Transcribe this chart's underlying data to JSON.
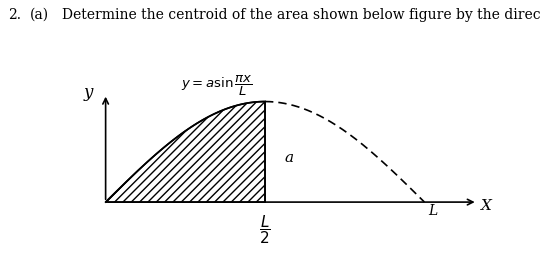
{
  "title_number": "2.",
  "title_part": "(a)",
  "title_text": "Determine the centroid of the area shown below figure by the direct integration method.",
  "title_fontsize": 10,
  "bg_color": "#ffffff",
  "fig_width": 5.4,
  "fig_height": 2.67,
  "dpi": 100,
  "hatch_pattern": "////",
  "label_y": "y",
  "label_x": "X",
  "label_L": "L",
  "label_a": "a",
  "ox": 0.08,
  "oy": 0.1,
  "xscale": 0.72,
  "yscale": 0.78
}
